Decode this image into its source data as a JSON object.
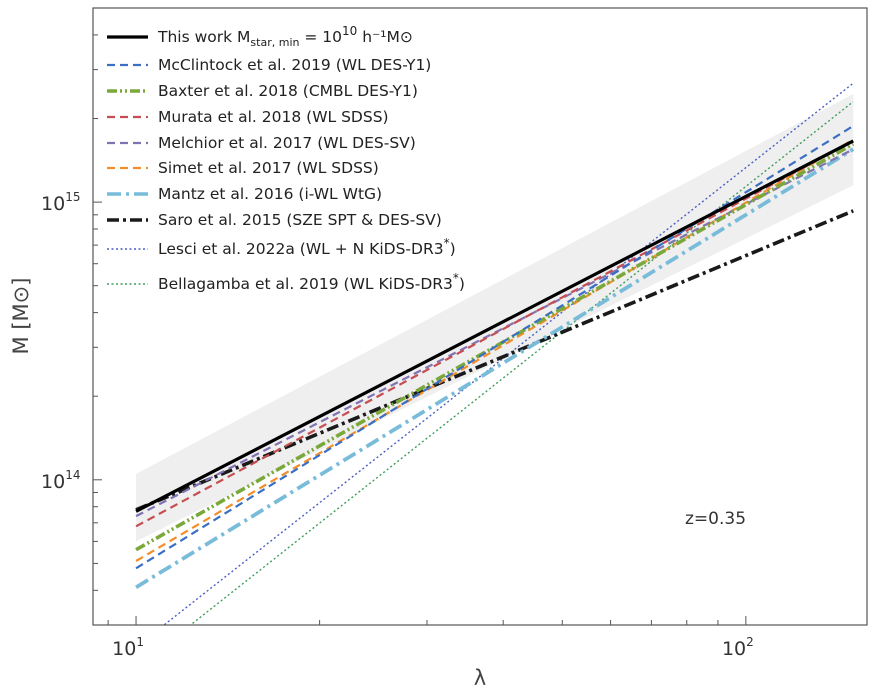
{
  "chart_data": {
    "type": "line",
    "xlabel": "λ",
    "ylabel": "M [M⊙]",
    "xscale": "log",
    "yscale": "log",
    "xlim": [
      8.5,
      158
    ],
    "ylim": [
      30000000000000,
      5000000000000000
    ],
    "x_ticks": [
      {
        "value": 10,
        "base": "10",
        "exp": "1"
      },
      {
        "value": 100,
        "base": "10",
        "exp": "2"
      }
    ],
    "y_ticks": [
      {
        "value": 100000000000000,
        "base": "10",
        "exp": "14"
      },
      {
        "value": 1000000000000000,
        "base": "10",
        "exp": "15"
      }
    ],
    "annotation": "z=0.35",
    "legend_position": "top-left",
    "band": {
      "x": [
        10,
        150
      ],
      "y_low": [
        60000000000000,
        1150000000000000
      ],
      "y_high": [
        105000000000000,
        2450000000000000
      ],
      "color": "#efefef"
    },
    "series": [
      {
        "name": "This work M_star,min = 10^10 h^-1 M⊙",
        "legend": {
          "pre": "This work M",
          "sub": "star, min",
          "mid": " = 10",
          "sup": "10",
          "post": " h⁻¹M⊙"
        },
        "x": [
          10,
          150
        ],
        "y": [
          77000000000000,
          1660000000000000
        ],
        "color": "#000000",
        "width": 3.2,
        "dash": ""
      },
      {
        "name": "McClintock et al. 2019 (WL DES-Y1)",
        "x": [
          10,
          150
        ],
        "y": [
          48000000000000,
          1880000000000000
        ],
        "color": "#3a6fc4",
        "width": 2.2,
        "dash": "8,5"
      },
      {
        "name": "Baxter et al. 2018 (CMBL DES-Y1)",
        "x": [
          10,
          150
        ],
        "y": [
          56000000000000,
          1620000000000000
        ],
        "color": "#7aa83a",
        "width": 3.6,
        "dash": "10,3,2,3,2,3"
      },
      {
        "name": "Murata et al. 2018 (WL SDSS)",
        "x": [
          10,
          150
        ],
        "y": [
          68000000000000,
          1660000000000000
        ],
        "color": "#c44e52",
        "width": 2.2,
        "dash": "8,5"
      },
      {
        "name": "Melchior et al. 2017 (WL DES-SV)",
        "x": [
          10,
          150
        ],
        "y": [
          74000000000000,
          1550000000000000
        ],
        "color": "#8172b2",
        "width": 2.2,
        "dash": "8,5"
      },
      {
        "name": "Simet et al. 2017 (WL SDSS)",
        "x": [
          10,
          150
        ],
        "y": [
          51000000000000,
          1680000000000000
        ],
        "color": "#f28e2b",
        "width": 2.2,
        "dash": "8,5"
      },
      {
        "name": "Mantz et al. 2016 (i-WL WtG)",
        "x": [
          10,
          150
        ],
        "y": [
          41000000000000,
          1550000000000000
        ],
        "color": "#79bcd9",
        "width": 3.8,
        "dash": "14,5,3,5"
      },
      {
        "name": "Saro et al. 2015 (SZE SPT & DES-SV)",
        "x": [
          10,
          150
        ],
        "y": [
          78000000000000,
          930000000000000
        ],
        "color": "#1a1a1a",
        "width": 3.6,
        "dash": "12,4,3,4"
      },
      {
        "name": "Lesci et al. 2022a (WL + N  KiDS-DR3*)",
        "legend": {
          "pre": "Lesci et al. 2022a (WL + N  KiDS-DR3",
          "sup": "*",
          "post": ")"
        },
        "x": [
          10,
          150
        ],
        "y": [
          25000000000000,
          2680000000000000
        ],
        "color": "#4c5fc2",
        "width": 1.4,
        "dash": "2,2.5"
      },
      {
        "name": "Bellagamba et al. 2019 (WL KiDS-DR3*)",
        "legend": {
          "pre": "Bellagamba et al. 2019 (WL KiDS-DR3",
          "sup": "*",
          "post": ")"
        },
        "x": [
          10,
          150
        ],
        "y": [
          21000000000000,
          2300000000000000
        ],
        "color": "#3f9e5c",
        "width": 1.4,
        "dash": "2,2.5"
      }
    ]
  }
}
